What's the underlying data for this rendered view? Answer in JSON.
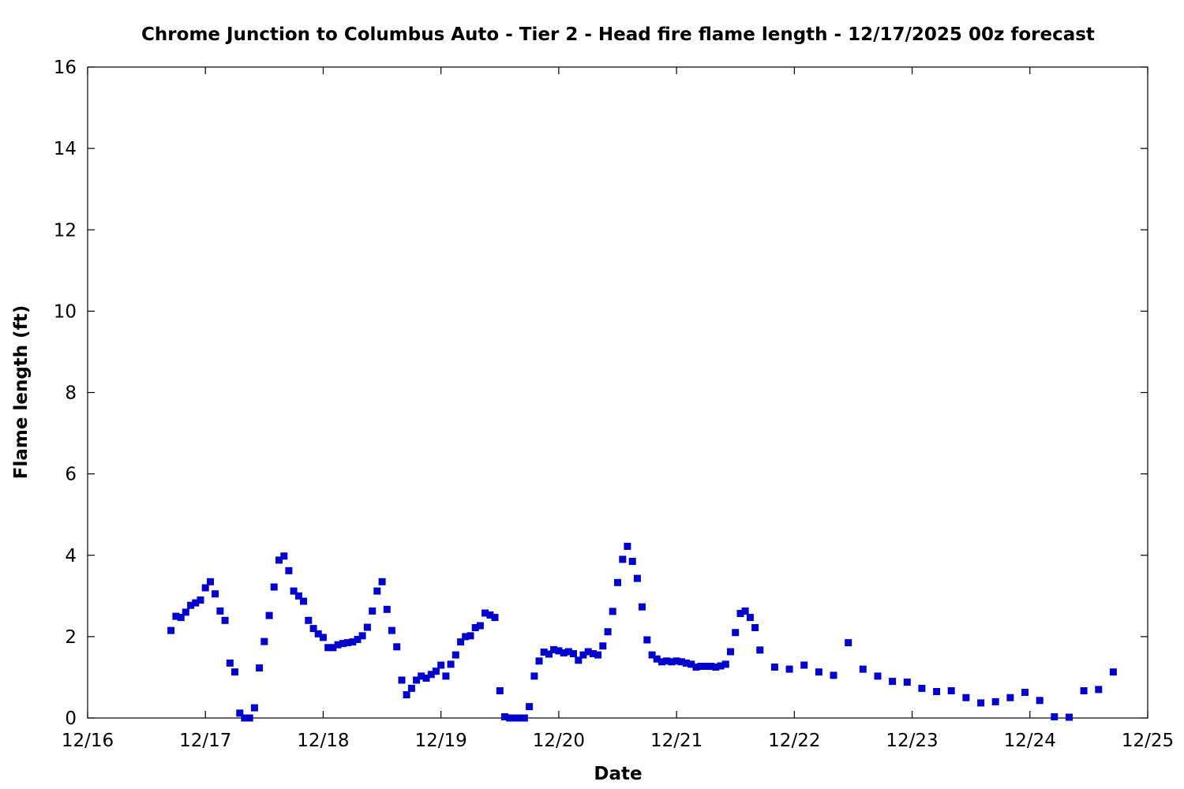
{
  "chart_data": {
    "type": "scatter",
    "title": "Chrome Junction to Columbus Auto - Tier 2 - Head fire flame length - 12/17/2025 00z forecast",
    "xlabel": "Date",
    "ylabel": "Flame length (ft)",
    "x_unit": "days since 12/16",
    "xlim": [
      0,
      9
    ],
    "ylim": [
      0,
      16
    ],
    "x_ticks": [
      {
        "value": 0,
        "label": "12/16"
      },
      {
        "value": 1,
        "label": "12/17"
      },
      {
        "value": 2,
        "label": "12/18"
      },
      {
        "value": 3,
        "label": "12/19"
      },
      {
        "value": 4,
        "label": "12/20"
      },
      {
        "value": 5,
        "label": "12/21"
      },
      {
        "value": 6,
        "label": "12/22"
      },
      {
        "value": 7,
        "label": "12/23"
      },
      {
        "value": 8,
        "label": "12/24"
      },
      {
        "value": 9,
        "label": "12/25"
      }
    ],
    "y_ticks": [
      0,
      2,
      4,
      6,
      8,
      10,
      12,
      14,
      16
    ],
    "grid": false,
    "marker_color": "#0000cc",
    "series": [
      {
        "name": "",
        "points": [
          [
            0.708,
            2.15
          ],
          [
            0.75,
            2.5
          ],
          [
            0.792,
            2.47
          ],
          [
            0.833,
            2.6
          ],
          [
            0.875,
            2.77
          ],
          [
            0.917,
            2.83
          ],
          [
            0.958,
            2.9
          ],
          [
            1.0,
            3.2
          ],
          [
            1.042,
            3.35
          ],
          [
            1.083,
            3.05
          ],
          [
            1.125,
            2.63
          ],
          [
            1.167,
            2.4
          ],
          [
            1.208,
            1.35
          ],
          [
            1.25,
            1.13
          ],
          [
            1.292,
            0.12
          ],
          [
            1.333,
            0.0
          ],
          [
            1.375,
            0.0
          ],
          [
            1.417,
            0.25
          ],
          [
            1.458,
            1.23
          ],
          [
            1.5,
            1.88
          ],
          [
            1.542,
            2.52
          ],
          [
            1.583,
            3.22
          ],
          [
            1.625,
            3.88
          ],
          [
            1.667,
            3.98
          ],
          [
            1.708,
            3.62
          ],
          [
            1.75,
            3.12
          ],
          [
            1.792,
            3.0
          ],
          [
            1.833,
            2.87
          ],
          [
            1.875,
            2.4
          ],
          [
            1.917,
            2.2
          ],
          [
            1.958,
            2.07
          ],
          [
            2.0,
            1.98
          ],
          [
            2.042,
            1.73
          ],
          [
            2.083,
            1.73
          ],
          [
            2.125,
            1.8
          ],
          [
            2.167,
            1.83
          ],
          [
            2.208,
            1.85
          ],
          [
            2.25,
            1.87
          ],
          [
            2.292,
            1.93
          ],
          [
            2.333,
            2.02
          ],
          [
            2.375,
            2.23
          ],
          [
            2.417,
            2.63
          ],
          [
            2.458,
            3.12
          ],
          [
            2.5,
            3.35
          ],
          [
            2.542,
            2.67
          ],
          [
            2.583,
            2.15
          ],
          [
            2.625,
            1.75
          ],
          [
            2.667,
            0.93
          ],
          [
            2.708,
            0.57
          ],
          [
            2.75,
            0.73
          ],
          [
            2.792,
            0.93
          ],
          [
            2.833,
            1.03
          ],
          [
            2.875,
            0.98
          ],
          [
            2.917,
            1.07
          ],
          [
            2.958,
            1.15
          ],
          [
            3.0,
            1.3
          ],
          [
            3.042,
            1.03
          ],
          [
            3.083,
            1.32
          ],
          [
            3.125,
            1.55
          ],
          [
            3.167,
            1.87
          ],
          [
            3.208,
            2.0
          ],
          [
            3.25,
            2.02
          ],
          [
            3.292,
            2.22
          ],
          [
            3.333,
            2.27
          ],
          [
            3.375,
            2.58
          ],
          [
            3.417,
            2.53
          ],
          [
            3.458,
            2.47
          ],
          [
            3.5,
            0.67
          ],
          [
            3.542,
            0.03
          ],
          [
            3.583,
            0.0
          ],
          [
            3.625,
            0.0
          ],
          [
            3.667,
            0.0
          ],
          [
            3.708,
            0.0
          ],
          [
            3.75,
            0.28
          ],
          [
            3.792,
            1.03
          ],
          [
            3.833,
            1.4
          ],
          [
            3.875,
            1.62
          ],
          [
            3.917,
            1.57
          ],
          [
            3.958,
            1.68
          ],
          [
            4.0,
            1.65
          ],
          [
            4.042,
            1.6
          ],
          [
            4.083,
            1.63
          ],
          [
            4.125,
            1.58
          ],
          [
            4.167,
            1.42
          ],
          [
            4.208,
            1.55
          ],
          [
            4.25,
            1.63
          ],
          [
            4.292,
            1.58
          ],
          [
            4.333,
            1.55
          ],
          [
            4.375,
            1.77
          ],
          [
            4.417,
            2.12
          ],
          [
            4.458,
            2.62
          ],
          [
            4.5,
            3.33
          ],
          [
            4.542,
            3.9
          ],
          [
            4.583,
            4.22
          ],
          [
            4.625,
            3.85
          ],
          [
            4.667,
            3.43
          ],
          [
            4.708,
            2.73
          ],
          [
            4.75,
            1.92
          ],
          [
            4.792,
            1.55
          ],
          [
            4.833,
            1.45
          ],
          [
            4.875,
            1.38
          ],
          [
            4.917,
            1.4
          ],
          [
            4.958,
            1.38
          ],
          [
            5.0,
            1.4
          ],
          [
            5.042,
            1.38
          ],
          [
            5.083,
            1.35
          ],
          [
            5.125,
            1.32
          ],
          [
            5.167,
            1.25
          ],
          [
            5.208,
            1.27
          ],
          [
            5.25,
            1.27
          ],
          [
            5.292,
            1.27
          ],
          [
            5.333,
            1.25
          ],
          [
            5.375,
            1.28
          ],
          [
            5.417,
            1.32
          ],
          [
            5.458,
            1.63
          ],
          [
            5.5,
            2.1
          ],
          [
            5.542,
            2.57
          ],
          [
            5.583,
            2.63
          ],
          [
            5.625,
            2.47
          ],
          [
            5.667,
            2.22
          ],
          [
            5.708,
            1.67
          ],
          [
            5.833,
            1.25
          ],
          [
            5.958,
            1.2
          ],
          [
            6.083,
            1.3
          ],
          [
            6.208,
            1.13
          ],
          [
            6.333,
            1.05
          ],
          [
            6.458,
            1.85
          ],
          [
            6.583,
            1.2
          ],
          [
            6.708,
            1.03
          ],
          [
            6.833,
            0.9
          ],
          [
            6.958,
            0.88
          ],
          [
            7.083,
            0.73
          ],
          [
            7.208,
            0.65
          ],
          [
            7.333,
            0.67
          ],
          [
            7.458,
            0.5
          ],
          [
            7.583,
            0.37
          ],
          [
            7.708,
            0.4
          ],
          [
            7.833,
            0.5
          ],
          [
            7.958,
            0.63
          ],
          [
            8.083,
            0.43
          ],
          [
            8.208,
            0.03
          ],
          [
            8.333,
            0.02
          ],
          [
            8.458,
            0.67
          ],
          [
            8.583,
            0.7
          ],
          [
            8.708,
            1.13
          ]
        ]
      }
    ]
  }
}
